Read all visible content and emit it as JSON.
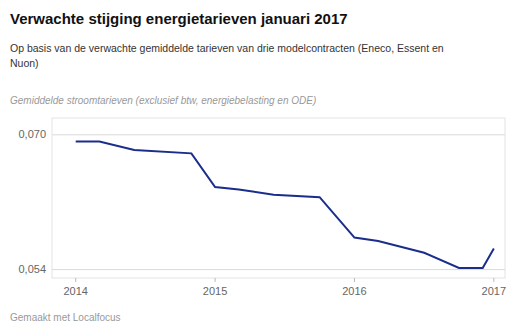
{
  "chart_data": {
    "type": "line",
    "title": "Verwachte stijging energietarieven januari 2017",
    "subtitle": "Op basis van de verwachte gemiddelde tarieven van drie modelcontracten (Eneco, Essent en\nNuon)",
    "y_label": "Gemiddelde stroomtarieven (exclusief btw, energiebelasting en ODE)",
    "footer": "Gemaakt met Localfocus",
    "color": "#1a2d8a",
    "x": [
      2014.0,
      2014.17,
      2014.17,
      2014.42,
      2014.42,
      2014.83,
      2014.83,
      2015.0,
      2015.0,
      2015.17,
      2015.17,
      2015.42,
      2015.42,
      2015.75,
      2015.75,
      2016.0,
      2016.0,
      2016.17,
      2016.17,
      2016.5,
      2016.5,
      2016.75,
      2016.75,
      2016.92,
      2016.92,
      2017.0
    ],
    "values": [
      0.0692,
      0.0692,
      0.0692,
      0.0682,
      0.0682,
      0.0678,
      0.0678,
      0.0638,
      0.0638,
      0.0635,
      0.0635,
      0.0629,
      0.0629,
      0.0626,
      0.0626,
      0.0578,
      0.0578,
      0.0574,
      0.0574,
      0.056,
      0.056,
      0.0542,
      0.0542,
      0.0542,
      0.0542,
      0.0565
    ],
    "xlim": [
      2013.83,
      2017.08
    ],
    "xticks": [
      2014,
      2015,
      2016,
      2017
    ],
    "ylim": [
      0.053,
      0.072
    ],
    "yticks": [
      {
        "value": 0.054,
        "label": "0,054"
      },
      {
        "value": 0.07,
        "label": "0,070"
      }
    ],
    "grid": true
  }
}
